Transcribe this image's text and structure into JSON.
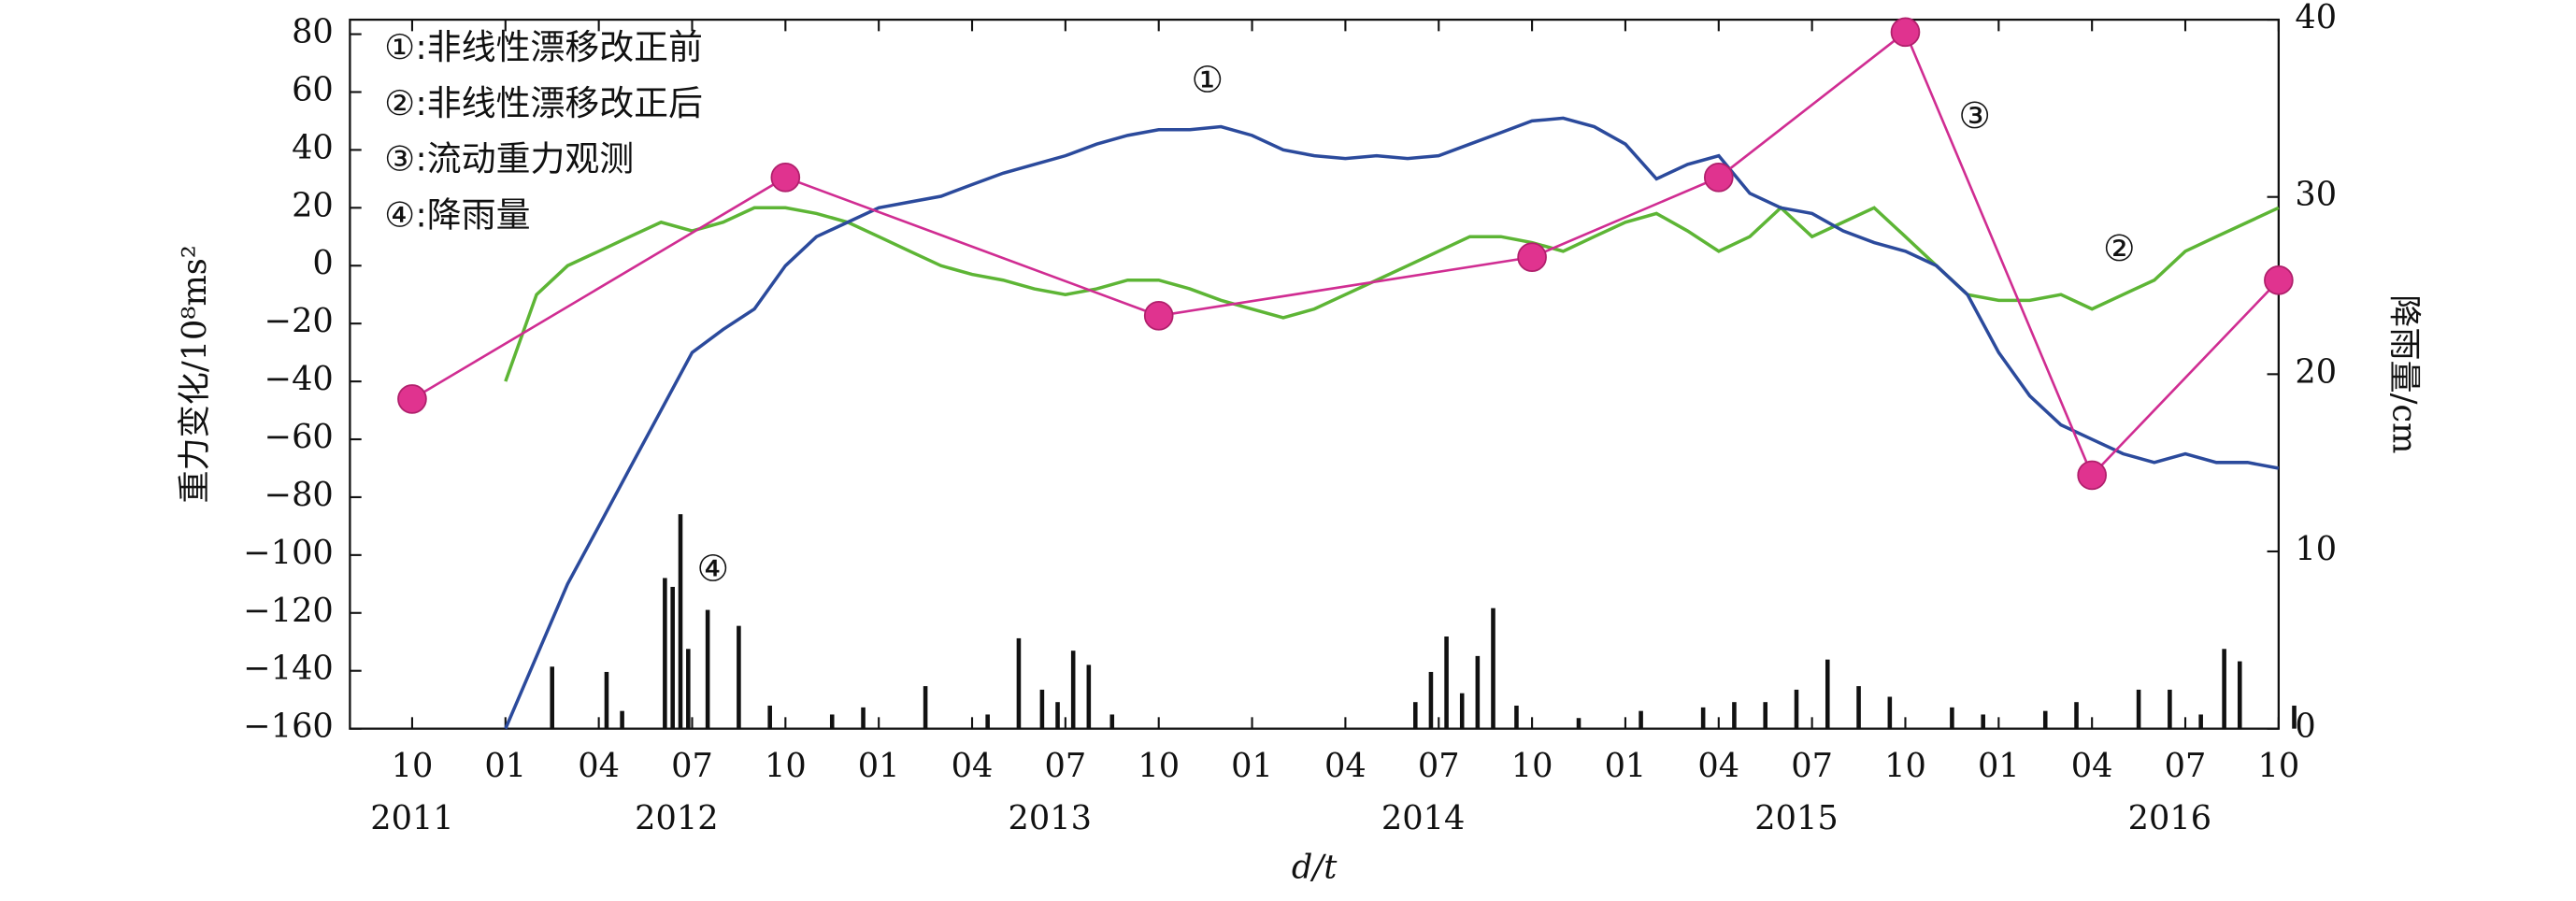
{
  "chart_data": {
    "type": "line",
    "xlabel": "d/t",
    "ylabel": "重力变化/10⁸ms²",
    "y2label": "降雨量/cm",
    "xlim": [
      "2011-08",
      "2016-10"
    ],
    "xticks": [
      {
        "value": "2011-10",
        "label": "10"
      },
      {
        "value": "2012-01",
        "label": "01"
      },
      {
        "value": "2012-04",
        "label": "04"
      },
      {
        "value": "2012-07",
        "label": "07"
      },
      {
        "value": "2012-10",
        "label": "10"
      },
      {
        "value": "2013-01",
        "label": "01"
      },
      {
        "value": "2013-04",
        "label": "04"
      },
      {
        "value": "2013-07",
        "label": "07"
      },
      {
        "value": "2013-10",
        "label": "10"
      },
      {
        "value": "2014-01",
        "label": "01"
      },
      {
        "value": "2014-04",
        "label": "04"
      },
      {
        "value": "2014-07",
        "label": "07"
      },
      {
        "value": "2014-10",
        "label": "10"
      },
      {
        "value": "2015-01",
        "label": "01"
      },
      {
        "value": "2015-04",
        "label": "04"
      },
      {
        "value": "2015-07",
        "label": "07"
      },
      {
        "value": "2015-10",
        "label": "10"
      },
      {
        "value": "2016-01",
        "label": "01"
      },
      {
        "value": "2016-04",
        "label": "04"
      },
      {
        "value": "2016-07",
        "label": "07"
      },
      {
        "value": "2016-10",
        "label": "10"
      }
    ],
    "years": [
      2011,
      2012,
      2013,
      2014,
      2015,
      2016
    ],
    "ylim": [
      -160,
      85
    ],
    "yticks": [
      {
        "value": 80,
        "label": "80"
      },
      {
        "value": 60,
        "label": "60"
      },
      {
        "value": 40,
        "label": "40"
      },
      {
        "value": 20,
        "label": "20"
      },
      {
        "value": 0,
        "label": "0"
      },
      {
        "value": -20,
        "label": "−20"
      },
      {
        "value": -40,
        "label": "−40"
      },
      {
        "value": -60,
        "label": "−60"
      },
      {
        "value": -80,
        "label": "−80"
      },
      {
        "value": -100,
        "label": "−100"
      },
      {
        "value": -120,
        "label": "−120"
      },
      {
        "value": -140,
        "label": "−140"
      },
      {
        "value": -160,
        "label": "−160"
      }
    ],
    "y2lim": [
      0,
      40
    ],
    "y2ticks": [
      0,
      10,
      20,
      30,
      40
    ],
    "series": [
      {
        "name": "①:非线性漂移改正前",
        "tag": "①",
        "kind": "line",
        "color": "#2b4a9c",
        "x": [
          "2012-01",
          "2012-02",
          "2012-03",
          "2012-04",
          "2012-05",
          "2012-06",
          "2012-07",
          "2012-08",
          "2012-09",
          "2012-10",
          "2012-11",
          "2012-12",
          "2013-01",
          "2013-02",
          "2013-03",
          "2013-04",
          "2013-05",
          "2013-06",
          "2013-07",
          "2013-08",
          "2013-09",
          "2013-10",
          "2013-11",
          "2013-12",
          "2014-01",
          "2014-02",
          "2014-03",
          "2014-04",
          "2014-05",
          "2014-06",
          "2014-07",
          "2014-08",
          "2014-09",
          "2014-10",
          "2014-11",
          "2014-12",
          "2015-01",
          "2015-02",
          "2015-03",
          "2015-04",
          "2015-05",
          "2015-06",
          "2015-07",
          "2015-08",
          "2015-09",
          "2015-10",
          "2015-11",
          "2015-12",
          "2016-01",
          "2016-02",
          "2016-03",
          "2016-04",
          "2016-05",
          "2016-06",
          "2016-07",
          "2016-08",
          "2016-09",
          "2016-10"
        ],
        "values": [
          -160,
          -135,
          -110,
          -90,
          -70,
          -50,
          -30,
          -22,
          -15,
          0,
          10,
          15,
          20,
          22,
          24,
          28,
          32,
          35,
          38,
          42,
          45,
          47,
          47,
          48,
          45,
          40,
          38,
          37,
          38,
          37,
          38,
          42,
          46,
          50,
          51,
          48,
          42,
          30,
          35,
          38,
          25,
          20,
          18,
          12,
          8,
          5,
          0,
          -10,
          -30,
          -45,
          -55,
          -60,
          -65,
          -68,
          -65,
          -68,
          -68,
          -70
        ]
      },
      {
        "name": "②:非线性漂移改正后",
        "tag": "②",
        "kind": "line",
        "color": "#5db535",
        "x": [
          "2012-01",
          "2012-02",
          "2012-03",
          "2012-04",
          "2012-05",
          "2012-06",
          "2012-07",
          "2012-08",
          "2012-09",
          "2012-10",
          "2012-11",
          "2012-12",
          "2013-01",
          "2013-02",
          "2013-03",
          "2013-04",
          "2013-05",
          "2013-06",
          "2013-07",
          "2013-08",
          "2013-09",
          "2013-10",
          "2013-11",
          "2013-12",
          "2014-01",
          "2014-02",
          "2014-03",
          "2014-04",
          "2014-05",
          "2014-06",
          "2014-07",
          "2014-08",
          "2014-09",
          "2014-10",
          "2014-11",
          "2014-12",
          "2015-01",
          "2015-02",
          "2015-03",
          "2015-04",
          "2015-05",
          "2015-06",
          "2015-07",
          "2015-08",
          "2015-09",
          "2015-10",
          "2015-11",
          "2015-12",
          "2016-01",
          "2016-02",
          "2016-03",
          "2016-04",
          "2016-05",
          "2016-06",
          "2016-07",
          "2016-08",
          "2016-09",
          "2016-10"
        ],
        "values": [
          -40,
          -10,
          0,
          5,
          10,
          15,
          12,
          15,
          20,
          20,
          18,
          15,
          10,
          5,
          0,
          -3,
          -5,
          -8,
          -10,
          -8,
          -5,
          -5,
          -8,
          -12,
          -15,
          -18,
          -15,
          -10,
          -5,
          0,
          5,
          10,
          10,
          8,
          5,
          10,
          15,
          18,
          12,
          5,
          10,
          20,
          10,
          15,
          20,
          10,
          0,
          -10,
          -12,
          -12,
          -10,
          -15,
          -10,
          -5,
          5,
          10,
          15,
          20
        ]
      },
      {
        "name": "③:流动重力观测",
        "tag": "③",
        "kind": "points",
        "axis": "y2",
        "color": "#d02d92",
        "x": [
          "2011-10",
          "2012-10",
          "2013-10",
          "2014-10",
          "2015-04",
          "2015-10",
          "2016-04",
          "2016-10"
        ],
        "values": [
          18.6,
          31.1,
          23.3,
          26.6,
          31.1,
          39.3,
          14.3,
          25.3
        ]
      },
      {
        "name": "④:降雨量",
        "tag": "④",
        "kind": "bars",
        "axis": "y2",
        "color": "#111111",
        "x": [
          "2012-02",
          "2012-04",
          "2012-04",
          "2012-06",
          "2012-06",
          "2012-06",
          "2012-06",
          "2012-07",
          "2012-08",
          "2012-09",
          "2012-11",
          "2012-12",
          "2013-02",
          "2013-04",
          "2013-05",
          "2013-06",
          "2013-06",
          "2013-07",
          "2013-07",
          "2013-08",
          "2014-06",
          "2014-06",
          "2014-07",
          "2014-07",
          "2014-08",
          "2014-08",
          "2014-09",
          "2014-11",
          "2015-01",
          "2015-03",
          "2015-04",
          "2015-05",
          "2015-06",
          "2015-07",
          "2015-08",
          "2015-09",
          "2015-11",
          "2015-12",
          "2016-02",
          "2016-03",
          "2016-05",
          "2016-06",
          "2016-07",
          "2016-08",
          "2016-08",
          "2016-10"
        ],
        "values": [
          3.5,
          3.2,
          1.0,
          8.5,
          8.0,
          12.1,
          4.5,
          6.7,
          5.8,
          1.3,
          0.8,
          1.2,
          2.4,
          0.8,
          5.1,
          2.2,
          1.5,
          4.4,
          3.6,
          0.8,
          1.5,
          3.2,
          5.2,
          2.0,
          4.1,
          6.8,
          1.3,
          0.6,
          1.0,
          1.2,
          1.5,
          1.5,
          2.2,
          3.9,
          2.4,
          1.8,
          1.2,
          0.8,
          1.0,
          1.5,
          2.2,
          2.2,
          0.8,
          4.5,
          3.8,
          1.3
        ]
      }
    ]
  }
}
